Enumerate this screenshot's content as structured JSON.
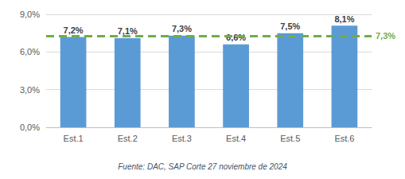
{
  "chart_data": {
    "type": "bar",
    "categories": [
      "Est.1",
      "Est.2",
      "Est.3",
      "Est.4",
      "Est.5",
      "Est.6"
    ],
    "values": [
      7.2,
      7.1,
      7.3,
      6.6,
      7.5,
      8.1
    ],
    "value_labels": [
      "7,2%",
      "7,1%",
      "7,3%",
      "6,6%",
      "7,5%",
      "8,1%"
    ],
    "color": "#5b9bd5",
    "data_labels": true,
    "ylim": [
      0,
      9
    ],
    "yticks": [
      {
        "value": 0,
        "label": "0,0%"
      },
      {
        "value": 3,
        "label": "3,0%"
      },
      {
        "value": 6,
        "label": "6,0%"
      },
      {
        "value": 9,
        "label": "9,0%"
      }
    ],
    "grid": true,
    "reference_line": {
      "value": 7.3,
      "label": "7,3%",
      "color": "#70ad47",
      "line_style": "dashed"
    },
    "caption": "Fuente: DAC, SAP Corte 27 noviembre de 2024"
  }
}
